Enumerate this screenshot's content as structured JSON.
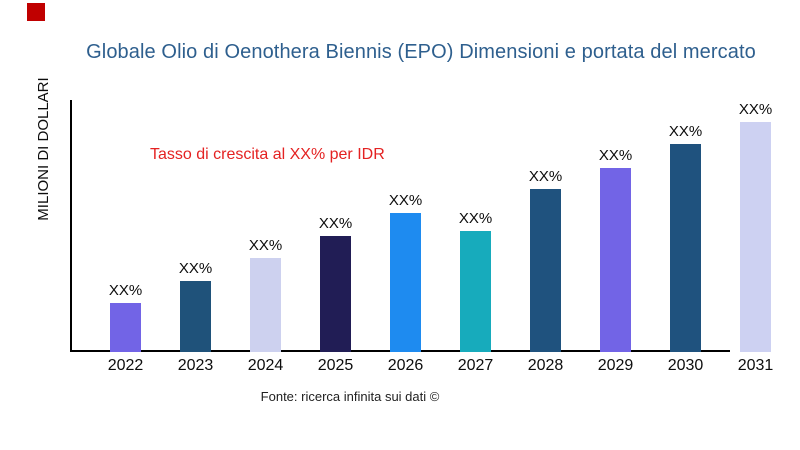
{
  "header": {
    "title": "Globale Olio di Oenothera Biennis (EPO) Dimensioni e portata del mercato",
    "title_color": "#2e5f8e",
    "brand_square_color": "#c00000"
  },
  "footer": {
    "text": "Fonte: ricerca infinita sui dati ©"
  },
  "chart_data": {
    "type": "bar",
    "title": "Globale Olio di Oenothera Biennis (EPO) Dimensioni e portata del mercato",
    "xlabel": "",
    "ylabel": "MILIONI DI DOLLARI",
    "categories": [
      "2022",
      "2023",
      "2024",
      "2025",
      "2026",
      "2027",
      "2028",
      "2029",
      "2030",
      "2031"
    ],
    "values": [
      21.3,
      30.9,
      40.9,
      50.4,
      60.4,
      52.6,
      70.9,
      80.0,
      90.4,
      100.0
    ],
    "value_labels": [
      "XX%",
      "XX%",
      "XX%",
      "XX%",
      "XX%",
      "XX%",
      "XX%",
      "XX%",
      "XX%",
      "XX%"
    ],
    "bar_colors": [
      "#7264e6",
      "#1f527a",
      "#cdd1ef",
      "#211d55",
      "#1e8bf0",
      "#17abbc",
      "#1f527e",
      "#7264e6",
      "#1f527e",
      "#cdd1f2"
    ],
    "ylim": [
      0,
      100
    ],
    "grid": false,
    "legend": false,
    "annotation": "Tasso di crescita al XX% per IDR",
    "annotation_color": "#e42222",
    "axis_color": "#000000",
    "note": "values are relative units (percent of 2031 bar); printed data labels show XX%"
  }
}
